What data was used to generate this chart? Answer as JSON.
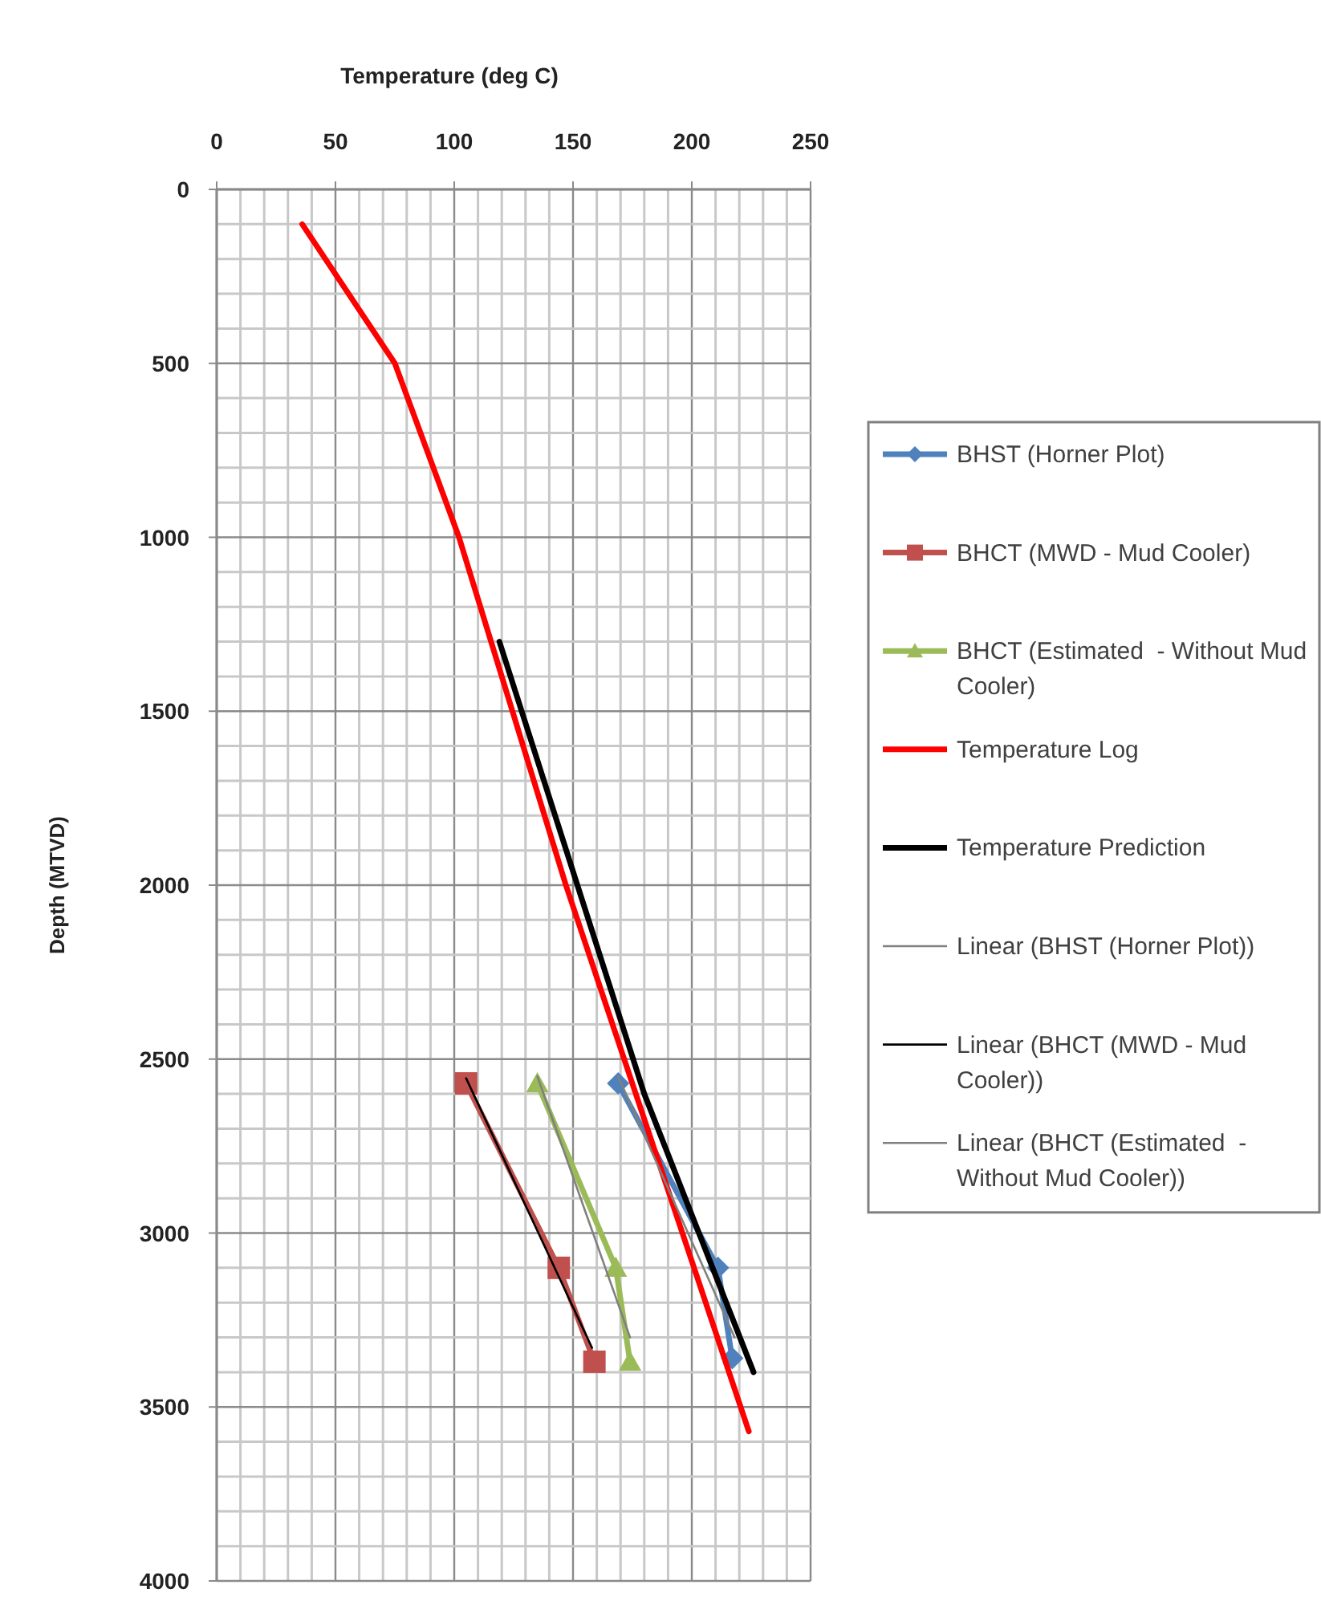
{
  "chart_data": {
    "type": "line",
    "xlabel": "Temperature (deg C)",
    "ylabel": "Depth (MTVD)",
    "xlim": [
      0,
      250
    ],
    "xticks": [
      0,
      {
        "value": 10,
        "label": null
      },
      {
        "value": 20,
        "label": null
      },
      {
        "value": 30,
        "label": null
      },
      {
        "value": 40,
        "label": null
      },
      50,
      {
        "value": 60,
        "label": null
      },
      {
        "value": 70,
        "label": null
      },
      {
        "value": 80,
        "label": null
      },
      {
        "value": 90,
        "label": null
      },
      100,
      {
        "value": 110,
        "label": null
      },
      {
        "value": 120,
        "label": null
      },
      {
        "value": 130,
        "label": null
      },
      {
        "value": 140,
        "label": null
      },
      150,
      {
        "value": 160,
        "label": null
      },
      {
        "value": 170,
        "label": null
      },
      {
        "value": 180,
        "label": null
      },
      {
        "value": 190,
        "label": null
      },
      200,
      {
        "value": 210,
        "label": null
      },
      {
        "value": 220,
        "label": null
      },
      {
        "value": 230,
        "label": null
      },
      {
        "value": 240,
        "label": null
      },
      250
    ],
    "ylim": [
      4000,
      0
    ],
    "yticks": [
      0,
      {
        "value": 100,
        "label": null
      },
      {
        "value": 200,
        "label": null
      },
      {
        "value": 300,
        "label": null
      },
      {
        "value": 400,
        "label": null
      },
      500,
      {
        "value": 600,
        "label": null
      },
      {
        "value": 700,
        "label": null
      },
      {
        "value": 800,
        "label": null
      },
      {
        "value": 900,
        "label": null
      },
      1000,
      {
        "value": 1100,
        "label": null
      },
      {
        "value": 1200,
        "label": null
      },
      {
        "value": 1300,
        "label": null
      },
      {
        "value": 1400,
        "label": null
      },
      1500,
      {
        "value": 1600,
        "label": null
      },
      {
        "value": 1700,
        "label": null
      },
      {
        "value": 1800,
        "label": null
      },
      {
        "value": 1900,
        "label": null
      },
      2000,
      {
        "value": 2100,
        "label": null
      },
      {
        "value": 2200,
        "label": null
      },
      {
        "value": 2300,
        "label": null
      },
      {
        "value": 2400,
        "label": null
      },
      2500,
      {
        "value": 2600,
        "label": null
      },
      {
        "value": 2700,
        "label": null
      },
      {
        "value": 2800,
        "label": null
      },
      {
        "value": 2900,
        "label": null
      },
      3000,
      {
        "value": 3100,
        "label": null
      },
      {
        "value": 3200,
        "label": null
      },
      {
        "value": 3300,
        "label": null
      },
      {
        "value": 3400,
        "label": null
      },
      3500,
      {
        "value": 3600,
        "label": null
      },
      {
        "value": 3700,
        "label": null
      },
      {
        "value": 3800,
        "label": null
      },
      {
        "value": 3900,
        "label": null
      },
      4000
    ],
    "grid": true,
    "legend": "right",
    "series": [
      {
        "name": "BHST (Horner Plot)",
        "color": "#4f81bd",
        "marker": "diamond",
        "x": [
          169,
          211,
          217
        ],
        "values": [
          2570,
          3100,
          3360
        ]
      },
      {
        "name": "BHCT (MWD - Mud Cooler)",
        "color": "#c0504d",
        "marker": "square",
        "x": [
          105,
          144,
          159
        ],
        "values": [
          2570,
          3100,
          3370
        ]
      },
      {
        "name": "BHCT (Estimated  - Without Mud Cooler)",
        "color": "#9bbb59",
        "marker": "triangle",
        "x": [
          135,
          168,
          174
        ],
        "values": [
          2570,
          3100,
          3370
        ]
      },
      {
        "name": "Temperature Log",
        "color": "#ff0000",
        "marker": "none",
        "x": [
          36,
          75,
          102,
          147,
          224
        ],
        "values": [
          100,
          500,
          1000,
          2000,
          3570
        ]
      },
      {
        "name": "Temperature Prediction",
        "color": "#000000",
        "marker": "none",
        "x": [
          119,
          180,
          226
        ],
        "values": [
          1300,
          2600,
          3400
        ]
      },
      {
        "name": "Linear (BHST (Horner Plot))",
        "color": "#808080",
        "marker": "none",
        "x": [
          169,
          218
        ],
        "values": [
          2550,
          3300
        ]
      },
      {
        "name": "Linear (BHCT (MWD - Mud Cooler))",
        "color": "#000000",
        "marker": "none",
        "x": [
          105,
          158
        ],
        "values": [
          2555,
          3330
        ]
      },
      {
        "name": "Linear (BHCT (Estimated  - Without Mud Cooler))",
        "color": "#808080",
        "marker": "none",
        "x": [
          135,
          174
        ],
        "values": [
          2550,
          3300
        ]
      }
    ]
  }
}
